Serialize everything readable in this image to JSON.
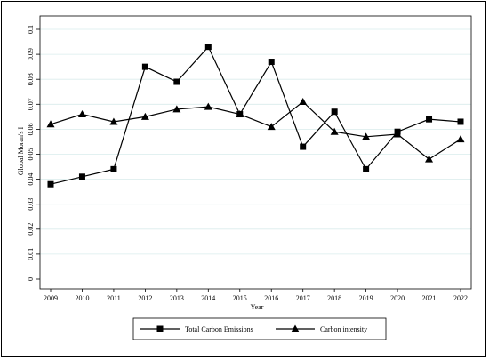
{
  "chart_data": {
    "type": "line",
    "title": "",
    "xlabel": "Year",
    "ylabel": "Global Moran's I",
    "x": [
      2009,
      2010,
      2011,
      2012,
      2013,
      2014,
      2015,
      2016,
      2017,
      2018,
      2019,
      2020,
      2021,
      2022
    ],
    "x_tick_labels": [
      "2009",
      "2010",
      "2011",
      "2012",
      "2013",
      "2014",
      "2015",
      "2016",
      "2017",
      "2018",
      "2019",
      "2020",
      "2021",
      "2022"
    ],
    "ylim": [
      0,
      0.1
    ],
    "y_ticks": [
      0,
      0.01,
      0.02,
      0.03,
      0.04,
      0.05,
      0.06,
      0.07,
      0.08,
      0.09,
      0.1
    ],
    "y_tick_labels": [
      "0",
      "0.01",
      "0.02",
      "0.03",
      "0.04",
      "0.05",
      "0.06",
      "0.07",
      "0.08",
      "0.09",
      "0.1"
    ],
    "grid": "horizontal",
    "legend_position": "bottom",
    "series": [
      {
        "name": "Total Carbon Emissions",
        "marker": "square",
        "color": "#000000",
        "values": [
          0.038,
          0.041,
          0.044,
          0.085,
          0.079,
          0.093,
          0.066,
          0.087,
          0.053,
          0.067,
          0.044,
          0.059,
          0.064,
          0.063
        ]
      },
      {
        "name": "Carbon intensity",
        "marker": "triangle",
        "color": "#000000",
        "values": [
          0.062,
          0.066,
          0.063,
          0.065,
          0.068,
          0.069,
          0.066,
          0.061,
          0.071,
          0.059,
          0.057,
          0.058,
          0.048,
          0.056
        ]
      }
    ],
    "grid_color": "#d9ecec"
  }
}
